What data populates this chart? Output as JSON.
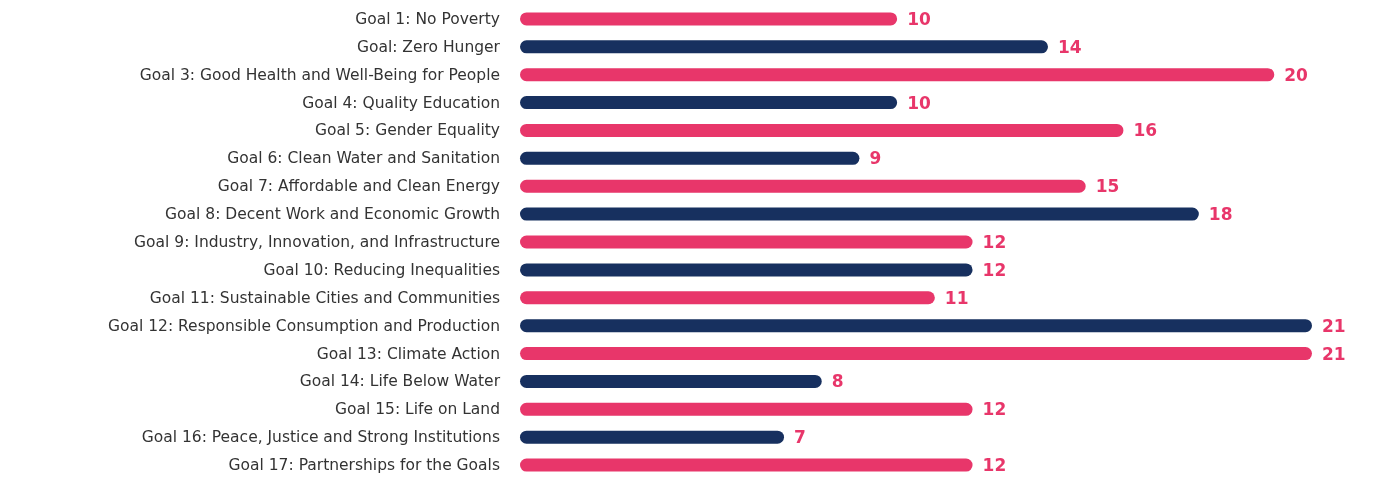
{
  "chart_data": {
    "type": "bar",
    "orientation": "horizontal",
    "data_labels": true,
    "categories": [
      "Goal 1: No Poverty",
      "Goal: Zero Hunger",
      "Goal 3: Good Health and Well-Being for People",
      "Goal 4: Quality Education",
      "Goal 5: Gender Equality",
      "Goal 6: Clean Water and Sanitation",
      "Goal 7: Affordable and Clean Energy",
      "Goal 8: Decent Work and Economic Growth",
      "Goal 9: Industry, Innovation, and Infrastructure",
      "Goal 10: Reducing Inequalities",
      "Goal 11: Sustainable Cities and Communities",
      "Goal 12: Responsible Consumption and Production",
      "Goal 13: Climate Action",
      "Goal 14: Life Below Water",
      "Goal 15: Life on Land",
      "Goal 16: Peace, Justice and Strong Institutions",
      "Goal 17: Partnerships for the Goals"
    ],
    "values": [
      10,
      14,
      20,
      10,
      16,
      9,
      15,
      18,
      12,
      12,
      11,
      21,
      21,
      8,
      12,
      7,
      12
    ],
    "colors": [
      "#e8366a",
      "#17305f",
      "#e8366a",
      "#17305f",
      "#e8366a",
      "#17305f",
      "#e8366a",
      "#17305f",
      "#e8366a",
      "#17305f",
      "#e8366a",
      "#17305f",
      "#e8366a",
      "#17305f",
      "#e8366a",
      "#17305f",
      "#e8366a"
    ]
  }
}
